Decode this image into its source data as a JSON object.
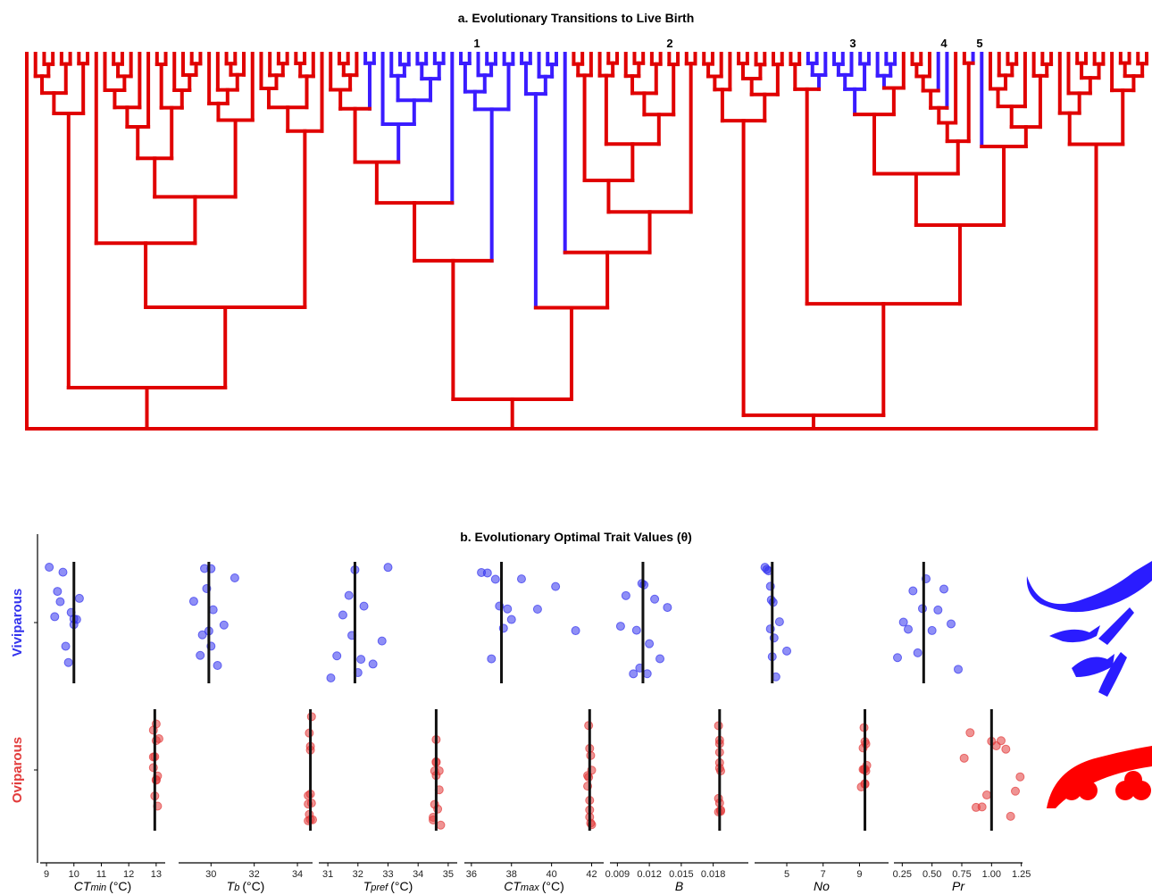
{
  "chart_data": [
    {
      "type": "tree",
      "title": "a. Evolutionary Transitions to Live Birth",
      "labels": [
        "1",
        "2",
        "3",
        "4",
        "5"
      ],
      "colors": {
        "oviparous": "#e00000",
        "viviparous": "#3a1cff"
      }
    },
    {
      "type": "strip",
      "title": "b. Evolutionary Optimal Trait Values (θ)",
      "groups": [
        {
          "name": "Viviparous",
          "color": "#3333ee"
        },
        {
          "name": "Oviparous",
          "color": "#e23b3b"
        }
      ],
      "panels": [
        {
          "xlabel": {
            "main": "CT",
            "sub": "min",
            "unit": "(°C)"
          },
          "xlim": [
            8.77,
            13.33
          ],
          "xticks": [
            9,
            10,
            11,
            12,
            13
          ],
          "series": [
            {
              "values": [
                9.1,
                9.3,
                9.5,
                9.6,
                9.8,
                9.9,
                10,
                10,
                10.1,
                10.2,
                9.4,
                9.7
              ],
              "mean": 10
            },
            {
              "values": [
                12.9,
                12.95,
                13,
                13.05,
                12.9,
                13,
                13.1,
                12.95,
                13,
                13.05,
                12.9,
                13
              ],
              "mean": 12.95
            }
          ]
        },
        {
          "xlabel": {
            "main": "T",
            "sub": "b",
            "unit": "(°C)"
          },
          "xlim": [
            28.5,
            34.7
          ],
          "xticks": [
            30,
            32,
            34
          ],
          "series": [
            {
              "values": [
                29.2,
                29.5,
                29.7,
                29.8,
                29.9,
                30,
                30,
                30.1,
                30.3,
                30.6,
                31.1,
                29.6
              ],
              "mean": 29.9
            },
            {
              "values": [
                34.5,
                34.6,
                34.55,
                34.65,
                34.6,
                34.5,
                34.7,
                34.6,
                34.55,
                34.65,
                34.6,
                34.5
              ],
              "mean": 34.6
            }
          ]
        },
        {
          "xlabel": {
            "main": "T",
            "sub": "pref",
            "unit": "(°C)"
          },
          "xlim": [
            30.7,
            35.3
          ],
          "xticks": [
            31,
            32,
            33,
            34,
            35
          ],
          "series": [
            {
              "values": [
                31.1,
                31.3,
                31.5,
                31.7,
                31.8,
                31.9,
                32,
                32.1,
                32.2,
                32.5,
                33,
                32.8
              ],
              "mean": 31.9
            },
            {
              "values": [
                34.5,
                34.6,
                34.7,
                34.55,
                34.65,
                34.6,
                34.5,
                34.75,
                34.6,
                34.55,
                34.7,
                34.6
              ],
              "mean": 34.6
            }
          ]
        },
        {
          "xlabel": {
            "main": "CT",
            "sub": "max",
            "unit": "(°C)"
          },
          "xlim": [
            35.65,
            42.6
          ],
          "xticks": [
            36,
            38,
            40,
            42
          ],
          "series": [
            {
              "values": [
                36.5,
                36.8,
                37,
                37.2,
                37.4,
                37.6,
                37.8,
                38,
                38.5,
                39.3,
                40.2,
                41.2
              ],
              "mean": 37.5
            },
            {
              "values": [
                41.8,
                41.9,
                41.85,
                41.95,
                42,
                41.9,
                41.85,
                41.95,
                41.9,
                41.8,
                42,
                41.9
              ],
              "mean": 41.9
            }
          ]
        },
        {
          "xlabel": {
            "main": "B"
          },
          "xlim": [
            0.0083,
            0.0213
          ],
          "xticks": [
            0.009,
            0.012,
            0.015,
            0.018
          ],
          "series": [
            {
              "values": [
                0.0093,
                0.0098,
                0.0105,
                0.0108,
                0.0111,
                0.0113,
                0.0115,
                0.0118,
                0.012,
                0.0125,
                0.013,
                0.0137
              ],
              "mean": 0.0114
            },
            {
              "values": [
                0.0185,
                0.0186,
                0.0187,
                0.0186,
                0.0185,
                0.0186,
                0.0187,
                0.0186,
                0.0185,
                0.0186,
                0.0187,
                0.0186
              ],
              "mean": 0.0186
            }
          ]
        },
        {
          "xlabel": {
            "main": "No"
          },
          "xlim": [
            3.23,
            10.6
          ],
          "xticks": [
            5,
            7,
            9
          ],
          "series": [
            {
              "values": [
                3.8,
                3.9,
                4,
                4.1,
                4.15,
                4.2,
                4.25,
                4.3,
                4.4,
                4.6,
                5,
                4.1
              ],
              "mean": 4.2
            },
            {
              "values": [
                9.1,
                9.2,
                9.3,
                9.35,
                9.25,
                9.3,
                9.4,
                9.2,
                9.3,
                9.35,
                9.25,
                9.3
              ],
              "mean": 9.3
            }
          ]
        },
        {
          "xlabel": {
            "main": "Pr"
          },
          "xlim": [
            0.18,
            1.26
          ],
          "xticks": [
            0.25,
            {
              "value": 0.5,
              "label": "0.50"
            },
            0.75,
            {
              "value": 1,
              "label": "1.00"
            },
            1.25
          ],
          "series": [
            {
              "values": [
                0.21,
                0.26,
                0.3,
                0.34,
                0.38,
                0.42,
                0.45,
                0.5,
                0.55,
                0.6,
                0.66,
                0.72
              ],
              "mean": 0.43
            },
            {
              "values": [
                0.77,
                0.82,
                0.87,
                0.92,
                0.96,
                1,
                1.04,
                1.08,
                1.12,
                1.16,
                1.2,
                1.24
              ],
              "mean": 1
            }
          ]
        }
      ]
    }
  ]
}
